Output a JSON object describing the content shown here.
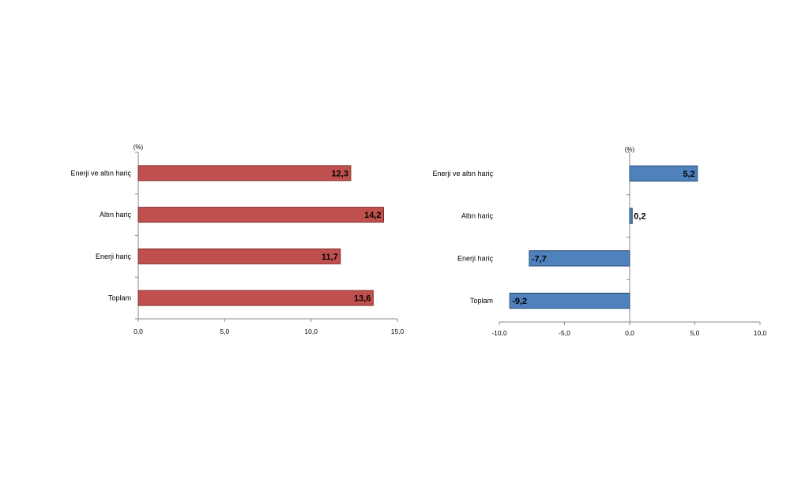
{
  "chart_data": [
    {
      "type": "bar",
      "orientation": "horizontal",
      "unit_label": "(%)",
      "categories": [
        "Enerji ve altın hariç",
        "Altın hariç",
        "Enerji hariç",
        "Toplam"
      ],
      "values": [
        12.3,
        14.2,
        11.7,
        13.6
      ],
      "value_labels": [
        "12,3",
        "14,2",
        "11,7",
        "13,6"
      ],
      "xlim": [
        0,
        15
      ],
      "ticks": [
        0,
        5,
        10,
        15
      ],
      "tick_labels": [
        "0,0",
        "5,0",
        "10,0",
        "15,0"
      ],
      "bar_color": "#c0504d",
      "bar_border": "#7f2f2d",
      "grid": false
    },
    {
      "type": "bar",
      "orientation": "horizontal",
      "unit_label": "(%)",
      "categories": [
        "Enerji ve altın hariç",
        "Altın hariç",
        "Enerji hariç",
        "Toplam"
      ],
      "values": [
        5.2,
        0.2,
        -7.7,
        -9.2
      ],
      "value_labels": [
        "5,2",
        "0,2",
        "-7,7",
        "-9,2"
      ],
      "xlim": [
        -10,
        10
      ],
      "ticks": [
        -10,
        -5,
        0,
        5,
        10
      ],
      "tick_labels": [
        "-10,0",
        "-5,0",
        "0,0",
        "5,0",
        "10,0"
      ],
      "bar_color": "#4f81bd",
      "bar_border": "#2c4d75",
      "grid": false
    }
  ]
}
